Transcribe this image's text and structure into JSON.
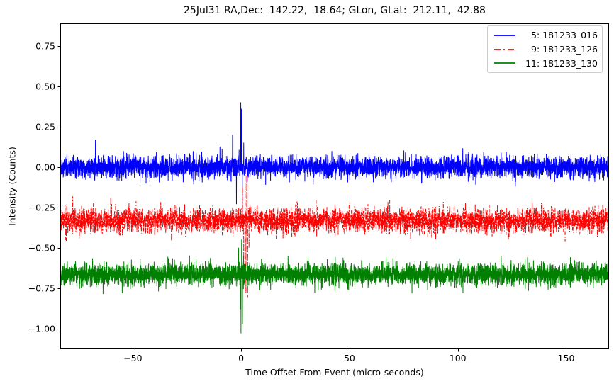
{
  "chart_data": {
    "type": "line",
    "title": "25Jul31 RA,Dec:  142.22,  18.64; GLon, GLat:  212.11,  42.88",
    "xlabel": "Time Offset From Event (micro-seconds)",
    "ylabel": "Intensity (Counts)",
    "xlim": [
      -83.5,
      169.8
    ],
    "ylim": [
      -1.128,
      0.889
    ],
    "grid": false,
    "background_color": "#ffffff",
    "axes_color": "#000000",
    "legend_position": "upper right",
    "legend_border_color": "#cccccc",
    "xticks": [
      {
        "v": -50,
        "label": "−50"
      },
      {
        "v": 0,
        "label": "0"
      },
      {
        "v": 50,
        "label": "50"
      },
      {
        "v": 100,
        "label": "100"
      },
      {
        "v": 150,
        "label": "150"
      }
    ],
    "yticks": [
      {
        "v": 0.75,
        "label": "0.75"
      },
      {
        "v": 0.5,
        "label": "0.50"
      },
      {
        "v": 0.25,
        "label": "0.25"
      },
      {
        "v": 0.0,
        "label": "0.00"
      },
      {
        "v": -0.25,
        "label": "−0.25"
      },
      {
        "v": -0.5,
        "label": "−0.50"
      },
      {
        "v": -0.75,
        "label": "−0.75"
      },
      {
        "v": -1.0,
        "label": "−1.00"
      }
    ],
    "series": [
      {
        "label": " 5: 181233_016",
        "color": "#0000ff",
        "linestyle": "solid",
        "baseline": 0.0,
        "noise_sd": 0.033,
        "spikes": [
          {
            "t": -67.3,
            "v": 0.17
          },
          {
            "t": -4.0,
            "v": 0.2
          },
          {
            "t": -2.2,
            "v": -0.23
          },
          {
            "t": -0.2,
            "v": 0.4
          },
          {
            "t": 0.1,
            "v": 0.36
          },
          {
            "t": 0.5,
            "v": -0.3
          },
          {
            "t": 1.2,
            "v": 0.15
          }
        ]
      },
      {
        "label": " 9: 181233_126",
        "color": "#ff0000",
        "linestyle": "dashdot",
        "baseline": -0.33,
        "noise_sd": 0.038,
        "spikes": [
          {
            "t": 0.6,
            "v": -0.12
          },
          {
            "t": 1.2,
            "v": -0.6
          },
          {
            "t": 1.8,
            "v": -0.02
          },
          {
            "t": 2.2,
            "v": -0.78
          },
          {
            "t": 2.6,
            "v": -0.05
          },
          {
            "t": 3.0,
            "v": -0.81
          },
          {
            "t": 3.6,
            "v": -0.5
          }
        ]
      },
      {
        "label": "11: 181233_130",
        "color": "#008000",
        "linestyle": "solid",
        "baseline": -0.665,
        "noise_sd": 0.034,
        "spikes": [
          {
            "t": -1.2,
            "v": -0.5
          },
          {
            "t": -0.4,
            "v": -0.88
          },
          {
            "t": -0.1,
            "v": -1.03
          },
          {
            "t": 0.2,
            "v": -0.45
          },
          {
            "t": 0.6,
            "v": -0.97
          },
          {
            "t": 1.1,
            "v": -0.55
          }
        ]
      }
    ]
  }
}
